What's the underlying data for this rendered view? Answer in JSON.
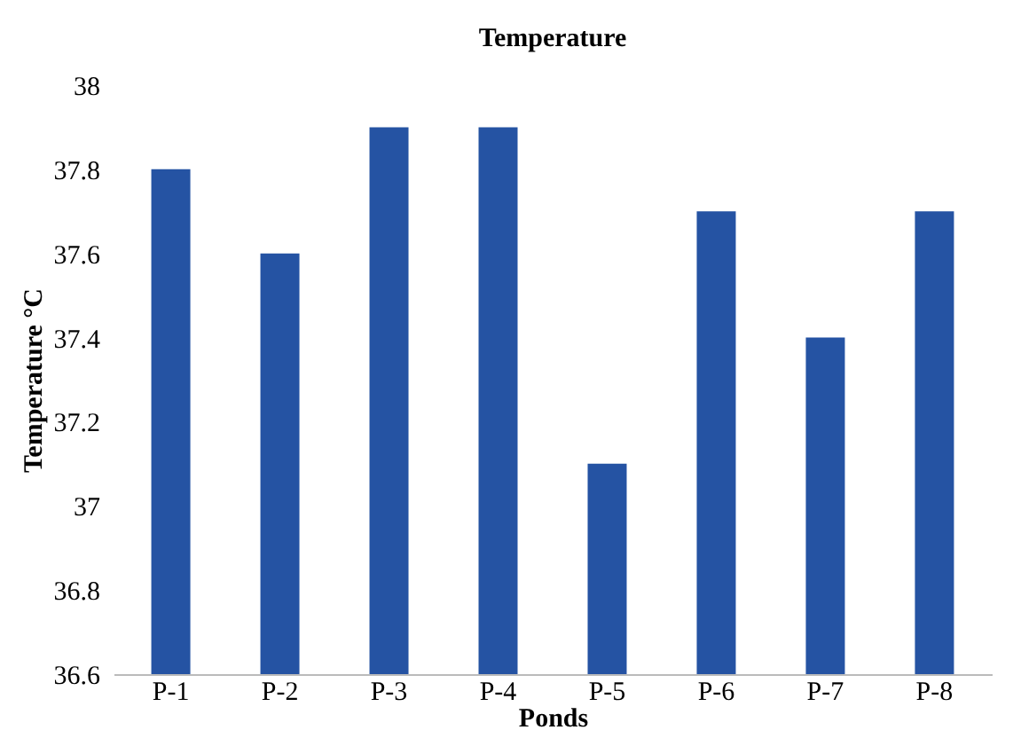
{
  "chart_data": {
    "type": "bar",
    "title": "Temperature",
    "xlabel": "Ponds",
    "ylabel": "Temperature °C",
    "categories": [
      "P-1",
      "P-2",
      "P-3",
      "P-4",
      "P-5",
      "P-6",
      "P-7",
      "P-8"
    ],
    "values": [
      37.8,
      37.6,
      37.9,
      37.9,
      37.1,
      37.7,
      37.4,
      37.7
    ],
    "color": "#2553a3",
    "ylim": [
      36.6,
      38
    ],
    "yticks": [
      36.6,
      36.8,
      37,
      37.2,
      37.4,
      37.6,
      37.8,
      38
    ],
    "grid": false
  }
}
